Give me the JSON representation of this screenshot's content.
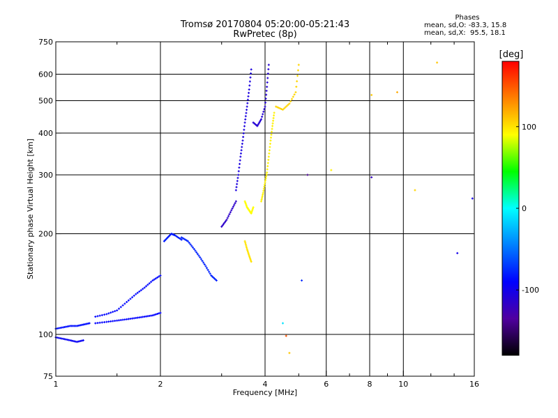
{
  "chart_data": {
    "type": "scatter",
    "title": "Tromsø 20170804 05:20:00-05:21:43",
    "subtitle": "RwPretec (8p)",
    "xlabel": "Frequency [MHz]",
    "ylabel": "Stationary phase Virtual Height [km]",
    "x_scale": "log",
    "y_scale": "log",
    "xlim": [
      1,
      16
    ],
    "ylim": [
      75,
      750
    ],
    "x_ticks": [
      1,
      2,
      4,
      6,
      8,
      10,
      16
    ],
    "x_tick_labels": [
      "1",
      "2",
      "4",
      "6",
      "8",
      "10",
      "16"
    ],
    "x_minor_ticks": [
      1.5,
      3,
      5,
      7,
      9,
      12,
      14
    ],
    "y_ticks": [
      75,
      100,
      200,
      300,
      400,
      500,
      600,
      750
    ],
    "y_tick_labels": [
      "75",
      "100",
      "200",
      "300",
      "400",
      "500",
      "600",
      "750"
    ],
    "grid": true,
    "legend": {
      "title": "Phases",
      "rows": [
        "mean, sd,O: -83.3, 15.8",
        "mean, sd,X:  95.5, 18.1"
      ]
    },
    "colorbar": {
      "label": "[deg]",
      "ticks": [
        100,
        0,
        -100
      ],
      "tick_labels": [
        "100",
        "0",
        "-100"
      ],
      "range": [
        -180,
        180
      ],
      "colors_top_to_bottom": [
        "#ff0000",
        "#ff8000",
        "#ffff00",
        "#00ff00",
        "#00ffff",
        "#0080ff",
        "#0000ff",
        "#5000a0",
        "#000000"
      ]
    },
    "series": [
      {
        "mode": "O",
        "traces": [
          {
            "x": [
              1.0,
              1.05,
              1.1,
              1.15,
              1.2,
              1.25
            ],
            "y": [
              104,
              105,
              106,
              106,
              107,
              108
            ],
            "phase": -85
          },
          {
            "x": [
              1.0,
              1.05,
              1.1,
              1.15,
              1.2
            ],
            "y": [
              98,
              97,
              96,
              95,
              96
            ],
            "phase": -95
          },
          {
            "x": [
              1.3,
              1.4,
              1.5,
              1.6,
              1.7,
              1.8,
              1.9,
              2.0
            ],
            "y": [
              108,
              109,
              110,
              111,
              112,
              113,
              114,
              116
            ],
            "phase": -90
          },
          {
            "x": [
              1.3,
              1.4,
              1.5,
              1.6,
              1.7,
              1.8,
              1.9,
              2.0
            ],
            "y": [
              113,
              115,
              118,
              125,
              132,
              138,
              145,
              150
            ],
            "phase": -88
          },
          {
            "x": [
              2.05,
              2.1,
              2.15,
              2.2,
              2.3
            ],
            "y": [
              190,
              195,
              200,
              198,
              192
            ],
            "phase": -80
          },
          {
            "x": [
              2.3,
              2.4,
              2.5,
              2.6,
              2.7,
              2.8,
              2.9
            ],
            "y": [
              195,
              190,
              180,
              170,
              160,
              150,
              145
            ],
            "phase": -78
          },
          {
            "x": [
              3.0,
              3.1,
              3.2,
              3.3
            ],
            "y": [
              210,
              220,
              235,
              250
            ],
            "phase": -115
          },
          {
            "x": [
              3.3,
              3.35,
              3.4,
              3.45,
              3.5,
              3.55,
              3.6,
              3.65
            ],
            "y": [
              270,
              300,
              340,
              380,
              430,
              480,
              540,
              620
            ],
            "phase": -105
          },
          {
            "x": [
              3.7,
              3.8,
              3.9,
              4.0,
              4.05,
              4.1
            ],
            "y": [
              430,
              420,
              440,
              480,
              550,
              640
            ],
            "phase": -110
          }
        ]
      },
      {
        "mode": "X",
        "traces": [
          {
            "x": [
              3.5,
              3.55,
              3.6,
              3.65,
              3.7
            ],
            "y": [
              250,
              240,
              235,
              230,
              240
            ],
            "phase": 90
          },
          {
            "x": [
              3.5,
              3.55,
              3.6,
              3.65
            ],
            "y": [
              190,
              180,
              172,
              165
            ],
            "phase": 100
          },
          {
            "x": [
              3.9,
              3.95,
              4.0,
              4.05,
              4.1,
              4.15,
              4.2,
              4.25
            ],
            "y": [
              250,
              265,
              285,
              305,
              340,
              380,
              420,
              460
            ],
            "phase": 95
          },
          {
            "x": [
              4.3,
              4.5,
              4.7,
              4.9,
              5.0
            ],
            "y": [
              480,
              470,
              490,
              530,
              640
            ],
            "phase": 105
          }
        ]
      }
    ],
    "scattered_points": [
      {
        "x": 4.5,
        "y": 108,
        "phase": -10
      },
      {
        "x": 4.6,
        "y": 99,
        "phase": 150
      },
      {
        "x": 4.7,
        "y": 88,
        "phase": 110
      },
      {
        "x": 5.1,
        "y": 145,
        "phase": -75
      },
      {
        "x": 5.3,
        "y": 300,
        "phase": -140
      },
      {
        "x": 6.2,
        "y": 310,
        "phase": 95
      },
      {
        "x": 8.1,
        "y": 295,
        "phase": -120
      },
      {
        "x": 8.1,
        "y": 520,
        "phase": 110
      },
      {
        "x": 9.6,
        "y": 530,
        "phase": 120
      },
      {
        "x": 10.8,
        "y": 270,
        "phase": 105
      },
      {
        "x": 12.5,
        "y": 650,
        "phase": 110
      },
      {
        "x": 14.3,
        "y": 175,
        "phase": -100
      },
      {
        "x": 15.8,
        "y": 255,
        "phase": -100
      }
    ]
  }
}
